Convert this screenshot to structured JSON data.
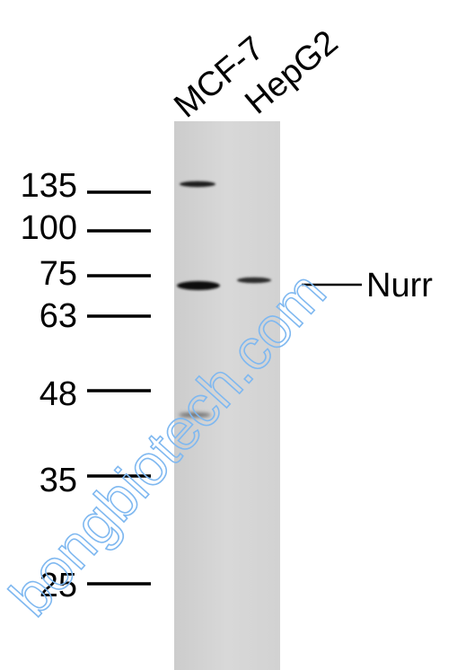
{
  "lanes": [
    {
      "label": "MCF-7"
    },
    {
      "label": "HepG2"
    }
  ],
  "markers": [
    {
      "label": "135"
    },
    {
      "label": "100"
    },
    {
      "label": "75"
    },
    {
      "label": "63"
    },
    {
      "label": "48"
    },
    {
      "label": "35"
    },
    {
      "label": "25"
    }
  ],
  "target": {
    "label": "Nurr"
  },
  "watermark": {
    "text": "bongbiotech.com",
    "color": "#7fb8f0"
  },
  "colors": {
    "membrane": "#d4d4d4",
    "band": "#1a1a1a"
  }
}
